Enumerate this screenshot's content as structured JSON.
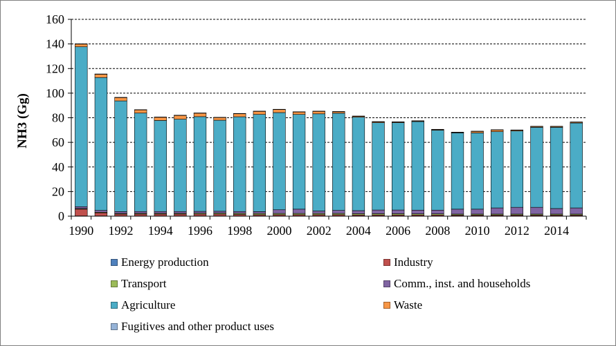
{
  "chart_data": {
    "type": "bar",
    "stacked": true,
    "ylabel": "NH3 (Gg)",
    "xlabel": "",
    "ylim": [
      0,
      160
    ],
    "yticks": [
      "0",
      "20",
      "40",
      "60",
      "80",
      "100",
      "120",
      "140",
      "160"
    ],
    "grid": "horizontal dashed",
    "legend_position": "bottom",
    "categories": [
      "1990",
      "1991",
      "1992",
      "1993",
      "1994",
      "1995",
      "1996",
      "1997",
      "1998",
      "1999",
      "2000",
      "2001",
      "2002",
      "2003",
      "2004",
      "2005",
      "2006",
      "2007",
      "2008",
      "2009",
      "2010",
      "2011",
      "2012",
      "2013",
      "2014",
      "2015"
    ],
    "xtick_labels": [
      "1990",
      "1992",
      "1994",
      "1996",
      "1998",
      "2000",
      "2002",
      "2004",
      "2006",
      "2008",
      "2010",
      "2012",
      "2014"
    ],
    "series": [
      {
        "name": "Energy production",
        "color": "#4F81BD",
        "values": [
          0.2,
          0.2,
          0.2,
          0.2,
          0.2,
          0.2,
          0.2,
          0.2,
          0.2,
          0.2,
          0.2,
          0.2,
          0.2,
          0.2,
          0.2,
          0.2,
          0.2,
          0.2,
          0.2,
          0.2,
          0.2,
          0.2,
          0.2,
          0.2,
          0.2,
          0.2
        ]
      },
      {
        "name": "Industry",
        "color": "#C0504D",
        "values": [
          5.5,
          2.5,
          1.5,
          1.5,
          1.5,
          1.5,
          1.5,
          1.5,
          1.2,
          1.0,
          1.0,
          1.0,
          1.0,
          1.0,
          0.8,
          0.8,
          0.8,
          0.8,
          0.8,
          0.7,
          0.7,
          0.7,
          0.7,
          0.7,
          0.7,
          0.7
        ]
      },
      {
        "name": "Transport",
        "color": "#9BBB59",
        "values": [
          0.5,
          0.5,
          0.5,
          0.6,
          0.6,
          0.6,
          0.7,
          0.8,
          0.9,
          1.0,
          1.0,
          1.0,
          1.0,
          1.0,
          1.0,
          1.0,
          1.0,
          0.9,
          0.9,
          0.8,
          0.8,
          0.8,
          0.8,
          0.8,
          0.8,
          0.8
        ]
      },
      {
        "name": "Comm., inst. and households",
        "color": "#8064A2",
        "values": [
          1.5,
          1.5,
          1.5,
          1.5,
          1.5,
          1.5,
          1.5,
          1.5,
          1.5,
          1.5,
          3.0,
          3.5,
          2.0,
          2.5,
          2.5,
          3.0,
          3.0,
          3.0,
          3.0,
          4.0,
          4.0,
          5.0,
          5.5,
          5.5,
          4.5,
          5.0
        ]
      },
      {
        "name": "Agriculture",
        "color": "#4BACC6",
        "values": [
          130,
          108,
          90,
          80,
          74,
          75,
          77,
          74,
          77,
          79,
          79,
          77,
          79,
          79,
          76,
          71,
          71,
          72,
          65,
          62,
          62,
          62,
          62,
          65,
          66,
          69
        ]
      },
      {
        "name": "Waste",
        "color": "#F79646",
        "values": [
          2.3,
          2.8,
          2.8,
          2.7,
          2.7,
          3.2,
          2.9,
          2.3,
          2.6,
          2.6,
          2.6,
          2.1,
          2.1,
          1.3,
          0.8,
          0.8,
          0.6,
          0.6,
          0.6,
          0.5,
          1.3,
          1.5,
          0.8,
          0.8,
          0.8,
          0.8
        ]
      },
      {
        "name": "Fugitives and other product uses",
        "color": "#95B3D7",
        "values": [
          0.1,
          0.1,
          0.1,
          0.1,
          0.1,
          0.1,
          0.1,
          0.1,
          0.1,
          0.1,
          0.1,
          0.1,
          0.1,
          0.1,
          0.1,
          0.1,
          0.1,
          0.1,
          0.1,
          0.1,
          0.1,
          0.1,
          0.1,
          0.1,
          0.1,
          0.1
        ]
      }
    ]
  }
}
